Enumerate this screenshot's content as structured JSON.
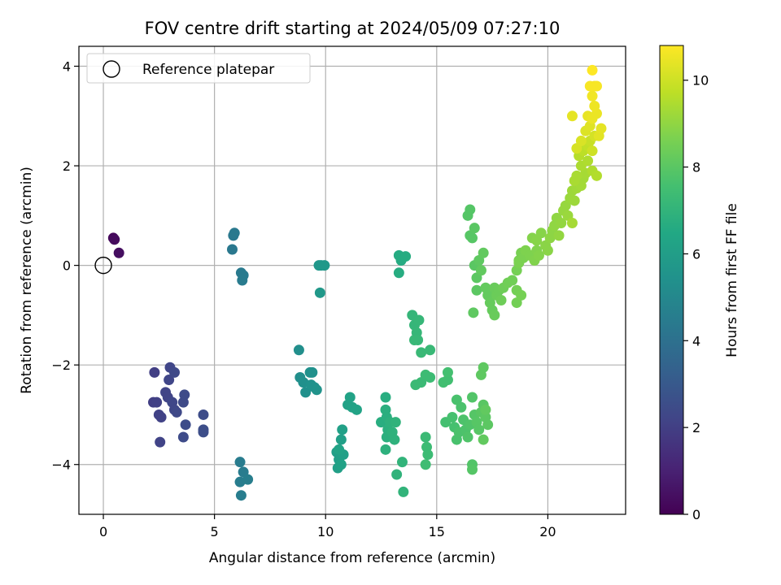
{
  "chart_data": {
    "type": "scatter",
    "title": "FOV centre drift starting at 2024/05/09 07:27:10",
    "xlabel": "Angular distance from reference (arcmin)",
    "ylabel": "Rotation from reference (arcmin)",
    "xlim": [
      -1.1,
      23.5
    ],
    "ylim": [
      -5.0,
      4.4
    ],
    "xticks": [
      0,
      5,
      10,
      15,
      20
    ],
    "yticks": [
      -4,
      -2,
      0,
      2,
      4
    ],
    "xtick_labels": [
      "0",
      "5",
      "10",
      "15",
      "20"
    ],
    "ytick_labels": [
      "−4",
      "−2",
      "0",
      "2",
      "4"
    ],
    "grid": true,
    "legend": {
      "placement": "top-left",
      "entries": [
        "Reference platepar"
      ]
    },
    "reference_point": {
      "x": 0,
      "y": 0,
      "marker": "open-circle"
    },
    "colorbar": {
      "label": "Hours from first FF file",
      "range": [
        0,
        10.8
      ],
      "ticks": [
        0,
        2,
        4,
        6,
        8,
        10
      ],
      "tick_labels": [
        "0",
        "2",
        "4",
        "6",
        "8",
        "10"
      ],
      "colormap": "viridis"
    },
    "series": [
      {
        "points": [
          [
            0.45,
            0.55,
            0.2
          ],
          [
            0.5,
            0.52,
            0.3
          ],
          [
            0.7,
            0.25,
            0.4
          ],
          [
            2.3,
            -2.15,
            2.0
          ],
          [
            2.25,
            -2.75,
            2.0
          ],
          [
            2.4,
            -2.75,
            2.05
          ],
          [
            2.5,
            -3.0,
            2.1
          ],
          [
            2.6,
            -3.05,
            2.1
          ],
          [
            2.55,
            -3.55,
            2.15
          ],
          [
            2.8,
            -2.55,
            2.2
          ],
          [
            2.9,
            -2.65,
            2.2
          ],
          [
            2.95,
            -2.3,
            2.25
          ],
          [
            3.0,
            -2.05,
            2.25
          ],
          [
            3.1,
            -2.75,
            2.3
          ],
          [
            3.2,
            -2.9,
            2.3
          ],
          [
            3.2,
            -2.15,
            2.35
          ],
          [
            3.3,
            -2.95,
            2.35
          ],
          [
            3.6,
            -2.75,
            2.4
          ],
          [
            3.65,
            -2.6,
            2.45
          ],
          [
            3.6,
            -3.45,
            2.45
          ],
          [
            3.7,
            -3.2,
            2.5
          ],
          [
            4.5,
            -3.0,
            2.5
          ],
          [
            4.5,
            -3.3,
            2.55
          ],
          [
            4.5,
            -3.35,
            2.55
          ],
          [
            5.8,
            0.32,
            4.3
          ],
          [
            5.85,
            0.6,
            4.3
          ],
          [
            5.9,
            0.65,
            4.35
          ],
          [
            6.2,
            -0.15,
            4.4
          ],
          [
            6.3,
            -0.2,
            4.4
          ],
          [
            6.25,
            -0.3,
            4.45
          ],
          [
            6.15,
            -3.95,
            4.5
          ],
          [
            6.3,
            -4.15,
            4.5
          ],
          [
            6.15,
            -4.35,
            4.55
          ],
          [
            6.2,
            -4.62,
            4.55
          ],
          [
            6.5,
            -4.3,
            4.6
          ],
          [
            8.8,
            -1.7,
            5.3
          ],
          [
            8.85,
            -2.25,
            5.3
          ],
          [
            9.0,
            -2.35,
            5.35
          ],
          [
            9.1,
            -2.55,
            5.35
          ],
          [
            9.3,
            -2.15,
            5.4
          ],
          [
            9.4,
            -2.15,
            5.4
          ],
          [
            9.35,
            -2.4,
            5.45
          ],
          [
            9.5,
            -2.45,
            5.45
          ],
          [
            9.6,
            -2.5,
            5.5
          ],
          [
            9.7,
            0.0,
            5.7
          ],
          [
            9.8,
            0.0,
            5.7
          ],
          [
            9.95,
            0.0,
            5.75
          ],
          [
            9.75,
            -0.55,
            5.75
          ],
          [
            10.5,
            -3.75,
            6.0
          ],
          [
            10.6,
            -3.9,
            6.0
          ],
          [
            10.55,
            -4.07,
            6.05
          ],
          [
            10.7,
            -3.5,
            6.05
          ],
          [
            10.75,
            -3.3,
            6.1
          ],
          [
            10.8,
            -3.8,
            6.1
          ],
          [
            10.7,
            -4.0,
            6.15
          ],
          [
            11.0,
            -2.8,
            6.15
          ],
          [
            11.1,
            -2.65,
            6.2
          ],
          [
            11.2,
            -2.85,
            6.2
          ],
          [
            11.4,
            -2.9,
            6.25
          ],
          [
            10.6,
            -3.7,
            6.25
          ],
          [
            12.5,
            -3.15,
            6.7
          ],
          [
            12.7,
            -2.65,
            6.7
          ],
          [
            12.7,
            -2.9,
            6.75
          ],
          [
            12.75,
            -3.05,
            6.75
          ],
          [
            12.8,
            -3.3,
            6.8
          ],
          [
            12.75,
            -3.45,
            6.8
          ],
          [
            12.7,
            -3.7,
            6.85
          ],
          [
            12.9,
            -3.15,
            6.85
          ],
          [
            13.0,
            -3.35,
            6.9
          ],
          [
            13.1,
            -3.5,
            6.9
          ],
          [
            13.15,
            -3.15,
            6.95
          ],
          [
            13.2,
            -4.2,
            6.95
          ],
          [
            13.5,
            -4.55,
            7.0
          ],
          [
            13.45,
            -3.95,
            7.0
          ],
          [
            13.3,
            0.2,
            6.6
          ],
          [
            13.4,
            0.1,
            6.6
          ],
          [
            13.6,
            0.18,
            6.65
          ],
          [
            13.3,
            -0.15,
            6.65
          ],
          [
            13.9,
            -1.0,
            7.1
          ],
          [
            14.0,
            -1.2,
            7.1
          ],
          [
            14.1,
            -1.35,
            7.15
          ],
          [
            14.2,
            -1.1,
            7.15
          ],
          [
            14.15,
            -1.5,
            7.2
          ],
          [
            14.0,
            -1.5,
            7.2
          ],
          [
            14.3,
            -1.75,
            7.25
          ],
          [
            14.7,
            -1.7,
            7.25
          ],
          [
            14.05,
            -2.4,
            7.3
          ],
          [
            14.3,
            -2.35,
            7.3
          ],
          [
            14.5,
            -2.2,
            7.35
          ],
          [
            14.7,
            -2.25,
            7.35
          ],
          [
            14.5,
            -3.45,
            7.3
          ],
          [
            14.55,
            -3.65,
            7.35
          ],
          [
            14.6,
            -3.8,
            7.35
          ],
          [
            14.5,
            -4.0,
            7.4
          ],
          [
            15.3,
            -2.35,
            7.5
          ],
          [
            15.5,
            -2.3,
            7.5
          ],
          [
            15.5,
            -2.15,
            7.55
          ],
          [
            15.4,
            -3.15,
            7.55
          ],
          [
            15.7,
            -3.05,
            7.6
          ],
          [
            15.8,
            -3.25,
            7.6
          ],
          [
            15.9,
            -2.7,
            7.65
          ],
          [
            15.9,
            -3.5,
            7.65
          ],
          [
            16.0,
            -3.35,
            7.7
          ],
          [
            16.1,
            -2.85,
            7.7
          ],
          [
            16.2,
            -3.1,
            7.75
          ],
          [
            16.3,
            -3.3,
            7.75
          ],
          [
            16.4,
            -3.45,
            7.8
          ],
          [
            16.5,
            -3.2,
            7.8
          ],
          [
            16.6,
            -2.65,
            7.85
          ],
          [
            16.6,
            -4.0,
            7.85
          ],
          [
            16.6,
            -4.1,
            7.9
          ],
          [
            16.7,
            -3.0,
            7.9
          ],
          [
            16.8,
            -3.15,
            7.95
          ],
          [
            16.9,
            -3.3,
            7.95
          ],
          [
            17.0,
            -2.95,
            8.0
          ],
          [
            17.1,
            -2.8,
            8.0
          ],
          [
            17.2,
            -3.05,
            8.05
          ],
          [
            17.3,
            -3.2,
            8.05
          ],
          [
            17.0,
            -2.2,
            8.1
          ],
          [
            17.1,
            -2.05,
            8.1
          ],
          [
            17.1,
            -3.5,
            8.15
          ],
          [
            17.2,
            -2.9,
            8.15
          ],
          [
            16.4,
            1.0,
            7.9
          ],
          [
            16.5,
            1.12,
            7.9
          ],
          [
            16.5,
            0.6,
            7.95
          ],
          [
            16.6,
            0.55,
            7.95
          ],
          [
            16.7,
            0.75,
            8.0
          ],
          [
            16.7,
            0.0,
            8.0
          ],
          [
            16.8,
            -0.25,
            8.05
          ],
          [
            16.8,
            -0.5,
            8.05
          ],
          [
            16.65,
            -0.95,
            8.1
          ],
          [
            16.9,
            0.1,
            8.1
          ],
          [
            17.0,
            -0.1,
            8.15
          ],
          [
            17.1,
            0.25,
            8.15
          ],
          [
            17.2,
            -0.45,
            8.2
          ],
          [
            17.3,
            -0.6,
            8.2
          ],
          [
            17.4,
            -0.75,
            8.25
          ],
          [
            17.5,
            -0.9,
            8.25
          ],
          [
            17.6,
            -1.0,
            8.3
          ],
          [
            17.6,
            -0.45,
            8.3
          ],
          [
            17.7,
            -0.6,
            8.35
          ],
          [
            17.8,
            -0.5,
            8.35
          ],
          [
            17.9,
            -0.7,
            8.4
          ],
          [
            18.0,
            -0.45,
            8.4
          ],
          [
            18.2,
            -0.35,
            8.45
          ],
          [
            18.4,
            -0.3,
            8.45
          ],
          [
            18.6,
            -0.5,
            8.5
          ],
          [
            18.6,
            -0.75,
            8.5
          ],
          [
            18.8,
            -0.6,
            8.55
          ],
          [
            18.6,
            -0.1,
            8.55
          ],
          [
            18.7,
            0.1,
            8.6
          ],
          [
            18.8,
            0.25,
            8.6
          ],
          [
            18.7,
            0.05,
            8.65
          ],
          [
            18.9,
            0.15,
            8.65
          ],
          [
            19.0,
            0.3,
            8.7
          ],
          [
            19.2,
            0.2,
            8.7
          ],
          [
            19.4,
            0.1,
            8.75
          ],
          [
            19.5,
            0.3,
            8.75
          ],
          [
            19.6,
            0.2,
            8.8
          ],
          [
            19.3,
            0.55,
            8.8
          ],
          [
            19.5,
            0.5,
            8.85
          ],
          [
            19.7,
            0.65,
            8.85
          ],
          [
            19.9,
            0.4,
            8.9
          ],
          [
            20.0,
            0.3,
            8.9
          ],
          [
            20.1,
            0.55,
            8.95
          ],
          [
            20.2,
            0.7,
            8.95
          ],
          [
            20.3,
            0.8,
            9.0
          ],
          [
            20.4,
            0.95,
            9.0
          ],
          [
            20.5,
            0.6,
            9.05
          ],
          [
            20.6,
            0.85,
            9.05
          ],
          [
            20.7,
            1.1,
            9.1
          ],
          [
            20.8,
            1.2,
            9.1
          ],
          [
            20.9,
            1.0,
            9.15
          ],
          [
            21.0,
            1.35,
            9.15
          ],
          [
            21.1,
            1.5,
            9.2
          ],
          [
            21.2,
            1.3,
            9.2
          ],
          [
            21.3,
            1.55,
            9.25
          ],
          [
            21.4,
            1.7,
            9.25
          ],
          [
            21.5,
            1.6,
            9.3
          ],
          [
            21.6,
            1.75,
            9.3
          ],
          [
            21.7,
            1.85,
            9.35
          ],
          [
            21.1,
            0.85,
            9.35
          ],
          [
            21.2,
            1.7,
            9.4
          ],
          [
            21.3,
            1.8,
            9.4
          ],
          [
            21.5,
            2.0,
            9.45
          ],
          [
            21.8,
            2.1,
            9.5
          ],
          [
            22.0,
            1.9,
            9.5
          ],
          [
            22.2,
            1.8,
            9.55
          ],
          [
            21.4,
            2.2,
            9.6
          ],
          [
            21.6,
            2.3,
            9.7
          ],
          [
            21.8,
            2.4,
            9.8
          ],
          [
            21.9,
            2.5,
            9.9
          ],
          [
            22.0,
            2.3,
            10.0
          ],
          [
            22.1,
            2.6,
            10.1
          ],
          [
            21.3,
            2.35,
            10.15
          ],
          [
            21.5,
            2.5,
            10.2
          ],
          [
            21.7,
            2.7,
            10.25
          ],
          [
            21.9,
            2.8,
            10.3
          ],
          [
            22.3,
            2.6,
            10.35
          ],
          [
            22.4,
            2.75,
            10.4
          ],
          [
            21.1,
            3.0,
            10.4
          ],
          [
            21.8,
            3.0,
            10.45
          ],
          [
            22.0,
            2.95,
            10.5
          ],
          [
            22.2,
            3.05,
            10.5
          ],
          [
            22.1,
            3.2,
            10.55
          ],
          [
            22.0,
            3.4,
            10.6
          ],
          [
            22.1,
            3.6,
            10.65
          ],
          [
            22.2,
            3.6,
            10.7
          ],
          [
            21.9,
            3.6,
            10.7
          ],
          [
            22.0,
            3.92,
            10.8
          ]
        ]
      }
    ]
  }
}
